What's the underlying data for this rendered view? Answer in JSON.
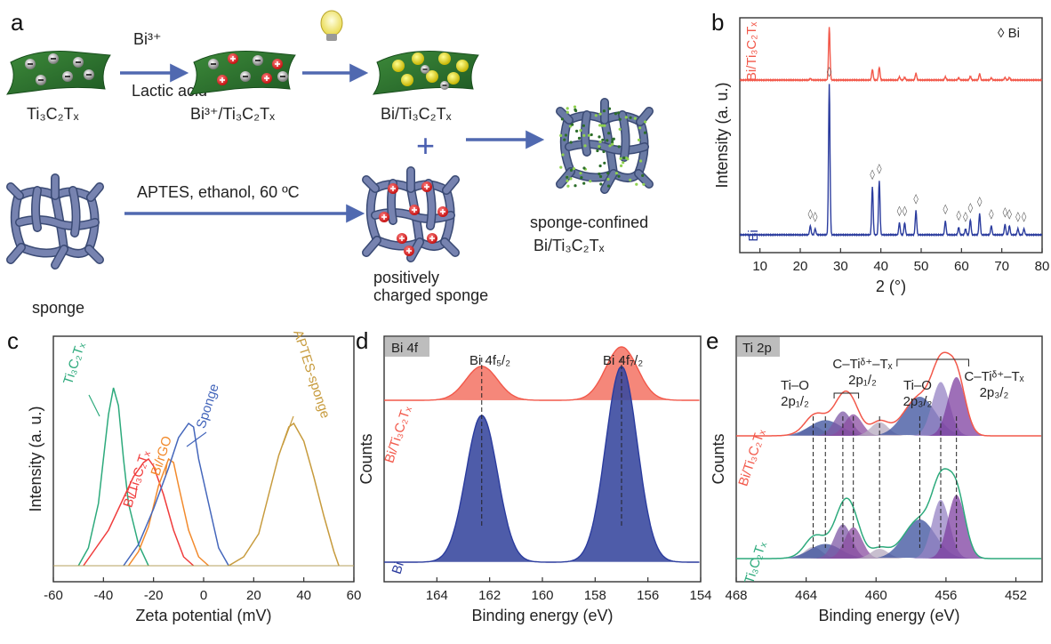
{
  "panel_labels": [
    "a",
    "b",
    "c",
    "d",
    "e"
  ],
  "scheme": {
    "bi3_label": "Bi³⁺",
    "lactic_label": "Lactic acid",
    "ti3c2tx_label": "Ti₃C₂Tₓ",
    "bi3_ti3c2tx_label": "Bi³⁺/Ti₃C₂Tₓ",
    "bi_ti3c2tx_label": "Bi/Ti₃C₂Tₓ",
    "aptes_label": "APTES, ethanol, 60 ºC",
    "sponge_label": "sponge",
    "positive_sponge_label": "positively charged sponge",
    "confined_label": "sponge-confined Bi/Ti₃C₂Tₓ",
    "plus_sign": "+"
  },
  "chart_data": [
    {
      "panel": "b",
      "type": "line",
      "xlabel": "2 (°)",
      "ylabel": "Intensity (a. u.)",
      "xlim": [
        5,
        80
      ],
      "xticks": [
        10,
        20,
        30,
        40,
        50,
        60,
        70,
        80
      ],
      "legend": "◊ Bi",
      "series": [
        {
          "name": "Bi/Ti₃C₂Tₓ",
          "color": "#f2584a",
          "peaks": [
            [
              22.5,
              0.03
            ],
            [
              27.2,
              1.0
            ],
            [
              37.9,
              0.2
            ],
            [
              39.6,
              0.24
            ],
            [
              44.6,
              0.06
            ],
            [
              45.9,
              0.05
            ],
            [
              48.7,
              0.13
            ],
            [
              56.0,
              0.06
            ],
            [
              59.3,
              0.04
            ],
            [
              62.2,
              0.07
            ],
            [
              64.5,
              0.12
            ],
            [
              67.4,
              0.04
            ],
            [
              70.8,
              0.05
            ],
            [
              71.9,
              0.05
            ]
          ]
        },
        {
          "name": "Bi",
          "color": "#2b3c9e",
          "peaks": [
            [
              22.5,
              0.06
            ],
            [
              23.7,
              0.04
            ],
            [
              27.2,
              1.0
            ],
            [
              37.9,
              0.32
            ],
            [
              39.6,
              0.36
            ],
            [
              44.6,
              0.08
            ],
            [
              45.9,
              0.08
            ],
            [
              48.7,
              0.16
            ],
            [
              56.0,
              0.09
            ],
            [
              59.3,
              0.05
            ],
            [
              61.0,
              0.04
            ],
            [
              62.2,
              0.1
            ],
            [
              64.5,
              0.14
            ],
            [
              67.4,
              0.06
            ],
            [
              70.8,
              0.07
            ],
            [
              71.9,
              0.06
            ],
            [
              74.0,
              0.04
            ],
            [
              75.5,
              0.04
            ]
          ]
        }
      ]
    },
    {
      "panel": "c",
      "type": "line",
      "xlabel": "Zeta potential (mV)",
      "ylabel": "Intensity (a. u.)",
      "xlim": [
        -60,
        60
      ],
      "xticks": [
        -60,
        -40,
        -20,
        0,
        20,
        40,
        60
      ],
      "series": [
        {
          "name": "Ti₃C₂Tₓ",
          "color": "#2daa7c",
          "points": [
            [
              -50,
              0
            ],
            [
              -46,
              0.1
            ],
            [
              -42,
              0.35
            ],
            [
              -40,
              0.6
            ],
            [
              -38,
              0.85
            ],
            [
              -36,
              1.0
            ],
            [
              -34,
              0.9
            ],
            [
              -32,
              0.6
            ],
            [
              -30,
              0.35
            ],
            [
              -26,
              0.12
            ],
            [
              -22,
              0
            ]
          ]
        },
        {
          "name": "Bi/Ti₃C₂Tₓ",
          "color": "#f03c3c",
          "points": [
            [
              -48,
              0
            ],
            [
              -44,
              0.08
            ],
            [
              -38,
              0.2
            ],
            [
              -32,
              0.38
            ],
            [
              -28,
              0.5
            ],
            [
              -24,
              0.58
            ],
            [
              -22,
              0.6
            ],
            [
              -20,
              0.56
            ],
            [
              -16,
              0.4
            ],
            [
              -12,
              0.2
            ],
            [
              -8,
              0.05
            ],
            [
              -4,
              0
            ]
          ]
        },
        {
          "name": "Bi/rGO",
          "color": "#f28a2c",
          "points": [
            [
              -30,
              0
            ],
            [
              -26,
              0.08
            ],
            [
              -22,
              0.22
            ],
            [
              -18,
              0.45
            ],
            [
              -14,
              0.6
            ],
            [
              -12,
              0.58
            ],
            [
              -10,
              0.45
            ],
            [
              -6,
              0.2
            ],
            [
              -2,
              0.05
            ],
            [
              2,
              0
            ]
          ]
        },
        {
          "name": "Sponge",
          "color": "#4466bb",
          "points": [
            [
              -32,
              0
            ],
            [
              -26,
              0.12
            ],
            [
              -20,
              0.32
            ],
            [
              -14,
              0.55
            ],
            [
              -10,
              0.72
            ],
            [
              -6,
              0.8
            ],
            [
              -4,
              0.78
            ],
            [
              -2,
              0.6
            ],
            [
              2,
              0.35
            ],
            [
              6,
              0.1
            ],
            [
              10,
              0
            ]
          ]
        },
        {
          "name": "APTES-sponge",
          "color": "#c79b3d",
          "points": [
            [
              10,
              0
            ],
            [
              16,
              0.05
            ],
            [
              22,
              0.18
            ],
            [
              26,
              0.4
            ],
            [
              30,
              0.62
            ],
            [
              34,
              0.78
            ],
            [
              36,
              0.8
            ],
            [
              40,
              0.7
            ],
            [
              44,
              0.5
            ],
            [
              48,
              0.28
            ],
            [
              52,
              0.08
            ],
            [
              54,
              0
            ]
          ]
        }
      ]
    },
    {
      "panel": "d",
      "type": "line",
      "xlabel": "Binding energy (eV)",
      "ylabel": "Counts",
      "xlim": [
        166,
        154
      ],
      "xticks": [
        164,
        162,
        160,
        158,
        156,
        154
      ],
      "tag": "Bi 4f",
      "peak_labels": [
        "Bi 4f₅/₂",
        "Bi 4f₇/₂"
      ],
      "series": [
        {
          "name": "Bi/Ti₃C₂Tₓ",
          "color": "#f2584a",
          "peaks": [
            [
              162.3,
              0.35
            ],
            [
              157.0,
              0.55
            ]
          ]
        },
        {
          "name": "Bi",
          "color": "#2b3c9e",
          "peaks": [
            [
              162.3,
              0.75
            ],
            [
              157.0,
              1.0
            ]
          ]
        }
      ]
    },
    {
      "panel": "e",
      "type": "line",
      "xlabel": "Binding energy (eV)",
      "ylabel": "Counts",
      "xlim": [
        468,
        450.5
      ],
      "xticks": [
        468,
        464,
        460,
        456,
        452
      ],
      "tag": "Ti 2p",
      "peak_labels": [
        "Ti–O 2p₁/₂",
        "C–Tiᵟ⁺–Tₓ 2p₁/₂",
        "Ti–O 2p₃/₂",
        "C–Tiᵟ⁺–Tₓ 2p₃/₂"
      ],
      "series": [
        {
          "name": "Bi/Ti₃C₂Tₓ",
          "color": "#f2584a",
          "peaks": [
            [
              463.6,
              0.1
            ],
            [
              462.9,
              0.16
            ],
            [
              461.9,
              0.25
            ],
            [
              461.3,
              0.22
            ],
            [
              459.8,
              0.14
            ],
            [
              457.5,
              0.4
            ],
            [
              456.3,
              0.55
            ],
            [
              455.4,
              0.6
            ]
          ]
        },
        {
          "name": "Ti₃C₂Tₓ",
          "color": "#2daa7c",
          "peaks": [
            [
              463.6,
              0.12
            ],
            [
              462.9,
              0.15
            ],
            [
              461.9,
              0.35
            ],
            [
              461.3,
              0.32
            ],
            [
              459.8,
              0.1
            ],
            [
              457.5,
              0.4
            ],
            [
              456.3,
              0.6
            ],
            [
              455.4,
              0.65
            ]
          ]
        }
      ]
    }
  ]
}
